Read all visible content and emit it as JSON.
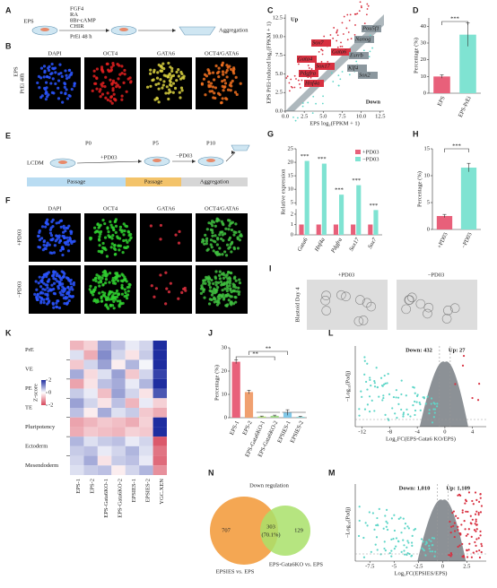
{
  "A": {
    "letter": "A",
    "cell": "EPS",
    "factors": [
      "FGF4",
      "RA",
      "8Br-cAMP",
      "CHIR"
    ],
    "treatment": "PrEi 48 h",
    "outcome": "Aggregation"
  },
  "B": {
    "letter": "B",
    "channels": [
      "DAPI",
      "OCT4",
      "GATA6",
      "OCT4/GATA6"
    ],
    "row": [
      "EPS",
      "PrEi 48h"
    ]
  },
  "C": {
    "letter": "C",
    "type": "scatter",
    "up": "Up",
    "down": "Down",
    "genes_up": [
      "Sox7",
      "Gata6",
      "Gata4",
      "Sox17",
      "Pdgfra",
      "Hnf4a"
    ],
    "genes_other": [
      "Pou5f1",
      "Nanog",
      "Esrrb",
      "Klf4",
      "Sox2"
    ],
    "xlabel": "EPS log₂(FPKM + 1)",
    "ylabel": "EPS PrEi-induced log₂(FPKM + 1)",
    "xlim": [
      0,
      13
    ],
    "ylim": [
      0,
      13
    ],
    "xticks": [
      {
        "value": 0,
        "label": "0.0"
      },
      {
        "value": 2.5,
        "label": "2.5"
      },
      {
        "value": 5,
        "label": "5.0"
      },
      {
        "value": 7.5,
        "label": "7.5"
      },
      {
        "value": 10,
        "label": "10.0"
      },
      {
        "value": 12.5,
        "label": "12.5"
      }
    ],
    "yticks": [
      {
        "value": 0,
        "label": "0.0"
      },
      {
        "value": 2.5,
        "label": "2.5"
      },
      {
        "value": 5,
        "label": "5.0"
      },
      {
        "value": 7.5,
        "label": "7.5"
      },
      {
        "value": 10,
        "label": "10.0"
      },
      {
        "value": 12.5,
        "label": "12.5"
      }
    ]
  },
  "D": {
    "letter": "D",
    "type": "bar",
    "categories": [
      "EPS",
      "EPS-PrEi"
    ],
    "values": [
      10,
      35
    ],
    "errors": [
      1,
      7
    ],
    "colors": [
      "#e8607a",
      "#7fe3d2"
    ],
    "ylim": [
      0,
      45
    ],
    "yticks": [
      0,
      10,
      20,
      30,
      40
    ],
    "ylabel": "Percentage (%)",
    "sig": "***"
  },
  "E": {
    "letter": "E",
    "medium": "LCDM",
    "stages": [
      "P0",
      "P5",
      "P10"
    ],
    "steps": [
      "+PD03",
      "−PD03"
    ],
    "phases": [
      "Passage",
      "Passage",
      "Aggregation"
    ]
  },
  "F": {
    "letter": "F",
    "channels": [
      "DAPI",
      "OCT4",
      "GATA6",
      "OCT4/GATA6"
    ],
    "rows": [
      "+PD03",
      "−PD03"
    ]
  },
  "G": {
    "letter": "G",
    "type": "bar",
    "categories": [
      "Gata6",
      "Hnf4a",
      "Pdgfra",
      "Sox17",
      "Sox7"
    ],
    "series": [
      {
        "name": "+PD03",
        "color": "#e8607a",
        "values": [
          1,
          1,
          1,
          1,
          1
        ]
      },
      {
        "name": "−PD03",
        "color": "#7fe3d2",
        "values": [
          20.5,
          19.5,
          8,
          11.5,
          2.4
        ]
      }
    ],
    "ylim": [
      0,
      25
    ],
    "axis_break": [
      2.5,
      4
    ],
    "yticks": [
      0,
      1,
      2,
      5,
      10,
      15,
      20,
      25
    ],
    "ylabel": "Relative expression",
    "sig": [
      "***",
      "***",
      "***",
      "***",
      "***"
    ]
  },
  "H": {
    "letter": "H",
    "type": "bar",
    "categories": [
      "+PD03",
      "−PD03"
    ],
    "values": [
      2.5,
      11.5
    ],
    "errors": [
      0.3,
      0.8
    ],
    "colors": [
      "#e8607a",
      "#7fe3d2"
    ],
    "ylim": [
      0,
      15
    ],
    "yticks": [
      0,
      5,
      10,
      15
    ],
    "ylabel": "Percentage (%)",
    "sig": "***"
  },
  "I": {
    "letter": "I",
    "columns": [
      "+PD03",
      "−PD03"
    ],
    "row": "Blastoid Day 4"
  },
  "J": {
    "letter": "J",
    "type": "bar",
    "categories": [
      "EPS-1",
      "EPS-2",
      "EPS-Gata6KO-1",
      "EPS-Gata6KO-2",
      "EPSIES-1",
      "EPSIES-2"
    ],
    "values": [
      24,
      11,
      0.5,
      0.8,
      2.2,
      0.4
    ],
    "errors": [
      0.8,
      0.8,
      0.2,
      0.3,
      1.2,
      0.2
    ],
    "colors": [
      "#e8607a",
      "#f0a070",
      "#b5e07a",
      "#9fd88a",
      "#80c8e8",
      "#90d8d8"
    ],
    "ylim": [
      0,
      30
    ],
    "yticks": [
      0,
      10,
      20,
      30
    ],
    "ylabel": "Percentage (%)",
    "sig": [
      "**",
      "**"
    ]
  },
  "K": {
    "letter": "K",
    "type": "heatmap",
    "groups": [
      "PrE",
      "VE",
      "PE",
      "TE",
      "Pluripotency",
      "Ectoderm",
      "Mesendoderm"
    ],
    "columns": [
      "EPS-1",
      "EPS-2",
      "EPS-Gata6KO-1",
      "EPS-Gata6KO-2",
      "EPSIES-1",
      "EPSIES-2",
      "YGC.XEN"
    ],
    "legend_title": "Z-score",
    "legend_ticks": [
      2,
      0,
      -2
    ],
    "values": [
      [
        -0.8,
        -0.5,
        0.9,
        0.6,
        0.2,
        0.4,
        2.2
      ],
      [
        0.3,
        -0.9,
        1.1,
        0.4,
        -0.3,
        0.5,
        2.4
      ],
      [
        -0.6,
        0.4,
        0.9,
        -0.2,
        0.7,
        0.1,
        2.0
      ],
      [
        0.8,
        -0.4,
        0.3,
        0.9,
        -0.6,
        0.4,
        1.8
      ],
      [
        -1.0,
        -0.3,
        0.6,
        0.8,
        0.2,
        0.7,
        2.1
      ],
      [
        0.5,
        0.2,
        -0.7,
        0.9,
        0.4,
        -0.3,
        1.6
      ],
      [
        0.9,
        0.4,
        -0.3,
        0.6,
        -0.8,
        0.2,
        -0.5
      ],
      [
        0.6,
        -0.2,
        0.8,
        0.3,
        0.5,
        -0.6,
        -0.9
      ],
      [
        -1.0,
        -0.8,
        -0.6,
        -0.7,
        -0.9,
        -0.5,
        2.2
      ],
      [
        -0.9,
        -0.6,
        -0.7,
        -0.8,
        -0.5,
        -0.6,
        2.0
      ],
      [
        0.7,
        0.3,
        0.5,
        0.6,
        0.2,
        0.4,
        -1.8
      ],
      [
        0.5,
        0.6,
        0.2,
        0.4,
        0.7,
        0.3,
        -1.5
      ],
      [
        0.4,
        0.8,
        -0.3,
        0.5,
        0.6,
        0.2,
        -1.6
      ],
      [
        0.3,
        0.5,
        0.6,
        -0.2,
        0.4,
        0.7,
        -1.2
      ]
    ]
  },
  "L": {
    "letter": "L",
    "type": "volcano",
    "down": "Down: 432",
    "up": "Up: 27",
    "xlabel": "Log₂FC(EPS-Gata6 KO/EPS)",
    "ylabel": "−Log₁₀(Padj)",
    "xlim": [
      -13,
      6
    ],
    "xticks": [
      -12,
      -8,
      -4,
      0,
      4
    ]
  },
  "M": {
    "letter": "M",
    "type": "volcano",
    "down": "Down: 1,010",
    "up": "Up: 1,109",
    "xlabel": "Log₂FC(EPSIES/EPS)",
    "ylabel": "−Log₁₀(Padj)",
    "xlim": [
      -9,
      4.5
    ],
    "xticks": [
      -7.5,
      -5,
      -2.5,
      0,
      2.5
    ]
  },
  "N": {
    "letter": "N",
    "title": "Down regulation",
    "left": 707,
    "center": 303,
    "center_pct": "(70.1%)",
    "right": 129,
    "left_label": "EPSIES vs. EPS",
    "right_label": "EPS-Gata6KO vs. EPS"
  }
}
